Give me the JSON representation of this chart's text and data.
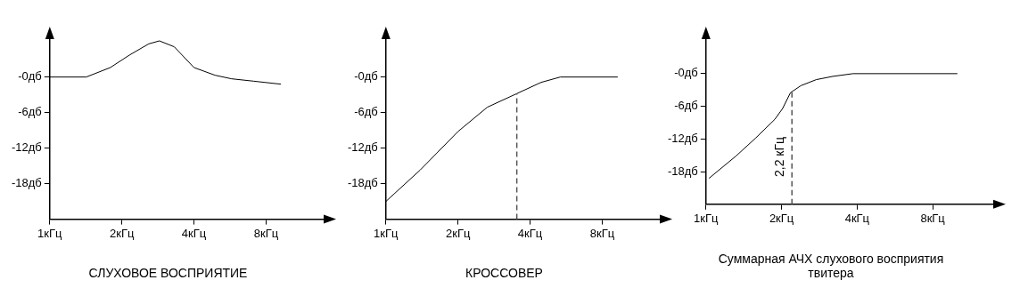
{
  "chart_data": [
    {
      "type": "line",
      "title": "СЛУХОВОЕ ВОСПРИЯТИЕ",
      "log": "x",
      "xlim": [
        1,
        14.4
      ],
      "ylim": [
        -24,
        7
      ],
      "xticks": [
        {
          "value": 1,
          "label": "1кГц"
        },
        {
          "value": 2,
          "label": "2кГц"
        },
        {
          "value": 4,
          "label": "4кГц"
        },
        {
          "value": 8,
          "label": "8кГц"
        }
      ],
      "yticks": [
        {
          "value": 0,
          "label": "-0дб"
        },
        {
          "value": -6,
          "label": "-6дб"
        },
        {
          "value": -12,
          "label": "-12дб"
        },
        {
          "value": -18,
          "label": "-18дб"
        }
      ],
      "grid": false,
      "legend": false,
      "marker": "none",
      "line_style": "solid",
      "series": [
        {
          "color": "#000000",
          "x": [
            1,
            1.42,
            1.79,
            2.15,
            2.59,
            2.87,
            3.31,
            4,
            4.9,
            5.74,
            7.1,
            9.2
          ],
          "values": [
            0,
            0,
            1.6,
            3.7,
            5.6,
            6.1,
            5.1,
            1.6,
            0.3,
            -0.3,
            -0.7,
            -1.2
          ]
        }
      ]
    },
    {
      "type": "line",
      "title": "КРОССОВЕР",
      "log": "x",
      "xlim": [
        1,
        14.4
      ],
      "ylim": [
        -24,
        7
      ],
      "xticks": [
        {
          "value": 1,
          "label": "1кГц"
        },
        {
          "value": 2,
          "label": "2кГц"
        },
        {
          "value": 4,
          "label": "4кГц"
        },
        {
          "value": 8,
          "label": "8кГц"
        }
      ],
      "yticks": [
        {
          "value": 0,
          "label": "-0дб"
        },
        {
          "value": -6,
          "label": "-6дб"
        },
        {
          "value": -12,
          "label": "-12дб"
        },
        {
          "value": -18,
          "label": "-18дб"
        }
      ],
      "grid": false,
      "legend": false,
      "marker": "none",
      "line_style": "solid",
      "ref_lines": [
        {
          "axis": "x",
          "value": 3.52,
          "color": "#555555",
          "line_style": "dashed"
        }
      ],
      "series": [
        {
          "color": "#000000",
          "x": [
            1,
            1.39,
            2,
            2.65,
            3.52,
            4.45,
            5.35,
            9.26
          ],
          "values": [
            -21,
            -15.7,
            -9.2,
            -5.1,
            -2.8,
            -0.9,
            0,
            0
          ]
        }
      ]
    },
    {
      "type": "line",
      "title": "Суммарная АЧХ слухового восприятия твитера",
      "log": "x",
      "xlim": [
        1,
        14.4
      ],
      "ylim": [
        -24,
        7
      ],
      "xticks": [
        {
          "value": 1,
          "label": "1кГц"
        },
        {
          "value": 2,
          "label": "2кГц"
        },
        {
          "value": 4,
          "label": "4кГц"
        },
        {
          "value": 8,
          "label": "8кГц"
        }
      ],
      "yticks": [
        {
          "value": 0,
          "label": "-0дб"
        },
        {
          "value": -6,
          "label": "-6дб"
        },
        {
          "value": -12,
          "label": "-12дб"
        },
        {
          "value": -18,
          "label": "-18дб"
        }
      ],
      "grid": false,
      "legend": false,
      "marker": "none",
      "line_style": "solid",
      "ref_lines": [
        {
          "axis": "x",
          "value": 2.2,
          "label": "2,2 кГц",
          "color": "#555555",
          "line_style": "dashed"
        }
      ],
      "series": [
        {
          "color": "#000000",
          "x": [
            1.03,
            1.32,
            1.58,
            1.88,
            2.02,
            2.17,
            2.39,
            2.75,
            3.2,
            3.85,
            10
          ],
          "values": [
            -19.2,
            -15.1,
            -11.8,
            -8.4,
            -6.4,
            -3.5,
            -2.2,
            -1.1,
            -0.5,
            0,
            0
          ]
        }
      ]
    }
  ]
}
